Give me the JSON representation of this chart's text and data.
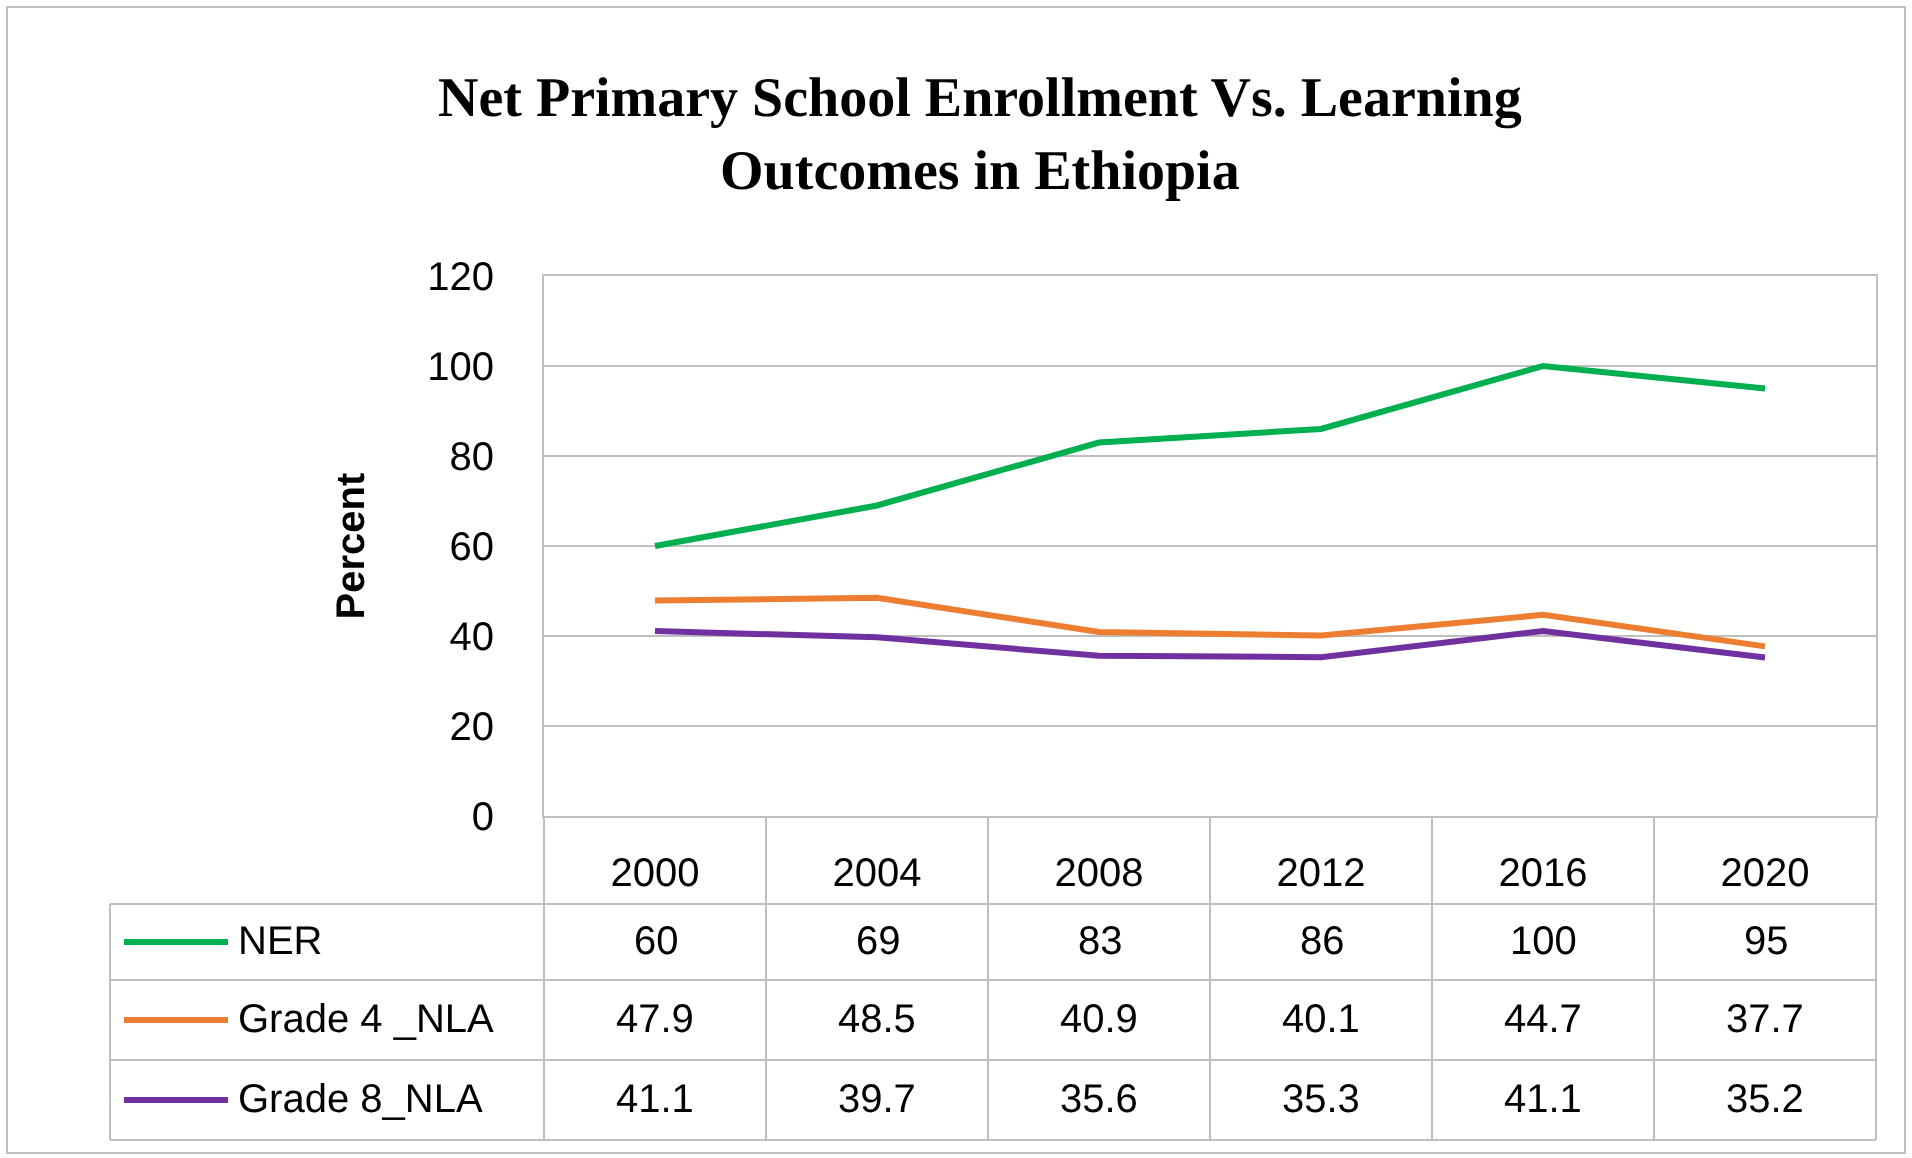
{
  "chart_data": {
    "type": "line",
    "title": "Net Primary School Enrollment Vs. Learning Outcomes in Ethiopia",
    "ylabel": "Percent",
    "categories": [
      "2000",
      "2004",
      "2008",
      "2012",
      "2016",
      "2020"
    ],
    "series": [
      {
        "name": "NER",
        "color": "#00b050",
        "values": [
          60,
          69,
          83,
          86,
          100,
          95
        ]
      },
      {
        "name": "Grade 4 _NLA",
        "color": "#ed7d31",
        "values": [
          47.9,
          48.5,
          40.9,
          40.1,
          44.7,
          37.7
        ]
      },
      {
        "name": "Grade 8_NLA",
        "color": "#7030a0",
        "values": [
          41.1,
          39.7,
          35.6,
          35.3,
          41.1,
          35.2
        ]
      }
    ],
    "ylim": [
      0,
      120
    ],
    "yticks": [
      0,
      20,
      40,
      60,
      80,
      100,
      120
    ],
    "grid": "y",
    "legend": "bottom",
    "data_labels": true,
    "marker": "none",
    "line_style": "solid"
  }
}
